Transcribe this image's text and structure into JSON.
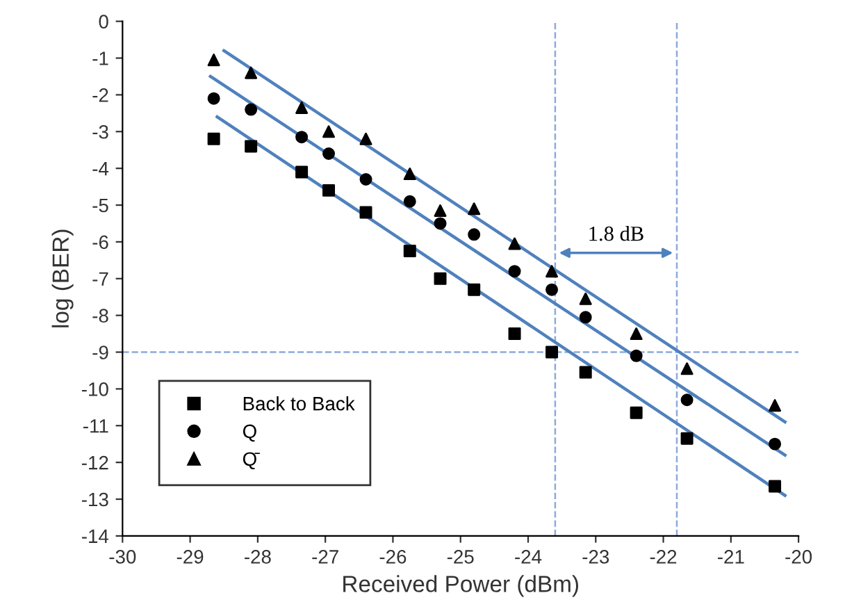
{
  "chart_data": {
    "type": "scatter",
    "xlabel": "Received Power (dBm)",
    "ylabel": "log (BER)",
    "xlim": [
      -30,
      -20
    ],
    "xticks": [
      -30,
      -29,
      -28,
      -27,
      -26,
      -25,
      -24,
      -23,
      -22,
      -21,
      -20
    ],
    "ylim": [
      -14,
      0
    ],
    "yticks": [
      -14,
      -13,
      -12,
      -11,
      -10,
      -9,
      -8,
      -7,
      -6,
      -5,
      -4,
      -3,
      -2,
      -1,
      0
    ],
    "grid": false,
    "legend": "bottom left",
    "x": [
      -28.65,
      -28.1,
      -27.35,
      -26.95,
      -26.4,
      -25.75,
      -25.3,
      -24.8,
      -24.2,
      -23.65,
      -23.15,
      -22.4,
      -21.65,
      -20.35
    ],
    "series": [
      {
        "name": "Back to Back",
        "color": "#000000",
        "marker": "square",
        "values": [
          -3.2,
          -3.4,
          -4.1,
          -4.6,
          -5.2,
          -6.25,
          -7.0,
          -7.3,
          -8.5,
          -9.0,
          -9.55,
          -10.65,
          -11.35,
          -12.65
        ]
      },
      {
        "name": "Q",
        "color": "#000000",
        "marker": "circle",
        "values": [
          -2.1,
          -2.4,
          -3.15,
          -3.6,
          -4.3,
          -4.9,
          -5.5,
          -5.8,
          -6.8,
          -7.3,
          -8.05,
          -9.1,
          -10.3,
          -11.5
        ]
      },
      {
        "name": "Q̄",
        "color": "#000000",
        "marker": "triangle",
        "values": [
          -1.05,
          -1.4,
          -2.35,
          -3.0,
          -3.2,
          -4.15,
          -5.15,
          -5.1,
          -6.05,
          -6.8,
          -7.55,
          -8.5,
          -9.45,
          -10.45
        ]
      },
      {
        "type": "line",
        "color": "#4f81bd",
        "x": [
          -28.6,
          -20.2
        ],
        "values": [
          -2.6,
          -12.9
        ]
      },
      {
        "type": "line",
        "color": "#4f81bd",
        "x": [
          -28.7,
          -20.2
        ],
        "values": [
          -1.5,
          -11.8
        ]
      },
      {
        "type": "line",
        "color": "#4f81bd",
        "x": [
          -28.5,
          -20.2
        ],
        "values": [
          -0.8,
          -10.9
        ]
      }
    ],
    "ref_lines": [
      {
        "axis": "y",
        "value": -9,
        "color": "#8eaadb",
        "line_style": "dashed"
      },
      {
        "axis": "x",
        "value": -23.6,
        "color": "#8eaadb",
        "line_style": "dashed"
      },
      {
        "axis": "x",
        "value": -21.8,
        "color": "#8eaadb",
        "line_style": "dashed"
      }
    ],
    "annotations": [
      "1.8 dB"
    ]
  }
}
